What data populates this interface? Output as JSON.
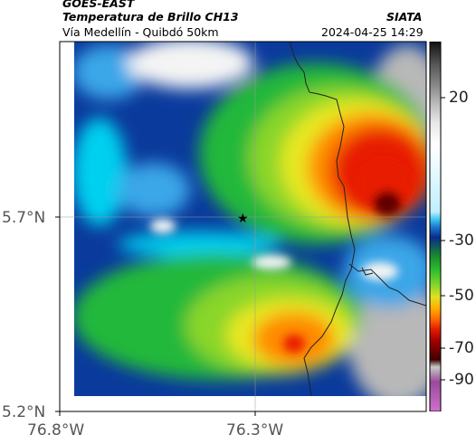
{
  "header": {
    "satellite": "GOES-EAST",
    "product": "Temperatura de Brillo CH13",
    "route": "Vía Medellín - Quibdó 50km",
    "org": "SIATA",
    "datetime": "2024-04-25 14:29"
  },
  "axes": {
    "lat_ticks": [
      "5.7°N",
      "5.2°N"
    ],
    "lon_ticks": [
      "76.8°W",
      "76.3°W"
    ]
  },
  "colorbar": {
    "tick_labels": [
      "20",
      "-30",
      "-50",
      "-70",
      "-90"
    ],
    "stops": [
      "#111111",
      "#555555",
      "#8a8a8a",
      "#bdbdbd",
      "#e8e8e8",
      "#ffffff",
      "#bfefff",
      "#44c8f0",
      "#1a7ed0",
      "#0a2a8c",
      "#1a8a2e",
      "#2fc02f",
      "#8ad62c",
      "#e0e020",
      "#ffb000",
      "#ff6a00",
      "#e01800",
      "#a00000",
      "#400000",
      "#c8c8c8",
      "#9a4a9a",
      "#d070d0"
    ]
  },
  "marker": {
    "symbol": "★"
  },
  "colors": {
    "cold_peak": "#600000",
    "red": "#e81a00",
    "orange": "#ff8a00",
    "yellow": "#e8e820",
    "lime": "#8ad62c",
    "green": "#22b83a",
    "blue": "#0a3a9c",
    "lightblue": "#3aa6e8",
    "cyan": "#00d0f0",
    "white": "#f4f4f4",
    "gray": "#b8b8b8"
  }
}
